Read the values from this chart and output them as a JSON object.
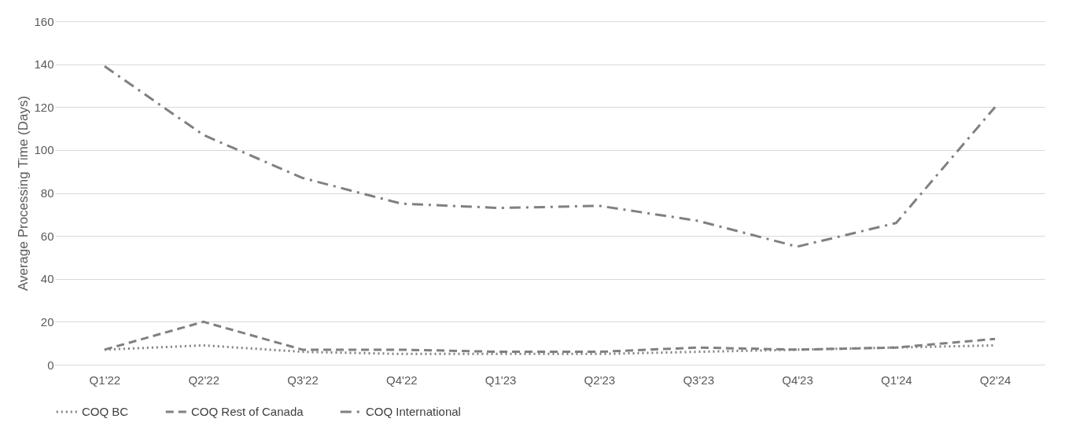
{
  "chart_data": {
    "type": "line",
    "ylabel": "Average Processing Time (Days)",
    "categories": [
      "Q1'22",
      "Q2'22",
      "Q3'22",
      "Q4'22",
      "Q1'23",
      "Q2'23",
      "Q3'23",
      "Q4'23",
      "Q1'24",
      "Q2'24"
    ],
    "series": [
      {
        "name": "COQ BC",
        "color": "#808080",
        "line_style": "dotted",
        "values": [
          7,
          9,
          6,
          5,
          5,
          5,
          6,
          7,
          8,
          9
        ]
      },
      {
        "name": "COQ Rest of Canada",
        "color": "#808080",
        "line_style": "dashed",
        "values": [
          7,
          20,
          7,
          7,
          6,
          6,
          8,
          7,
          8,
          12
        ]
      },
      {
        "name": "COQ International",
        "color": "#808080",
        "line_style": "dashdot",
        "values": [
          139,
          107,
          87,
          75,
          73,
          74,
          67,
          55,
          66,
          120
        ]
      }
    ],
    "ylim": [
      0,
      160
    ],
    "yticks": [
      0,
      20,
      40,
      60,
      80,
      100,
      120,
      140,
      160
    ],
    "grid": "y",
    "legend": "bottom",
    "marker": "none"
  }
}
